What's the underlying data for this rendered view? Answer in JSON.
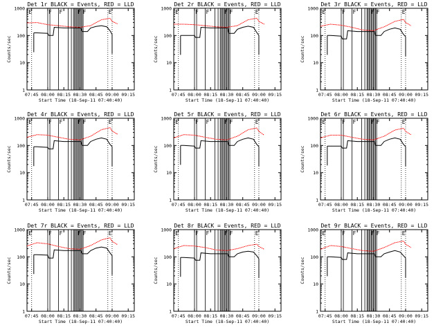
{
  "figure_title": "",
  "chart_data": [
    {
      "type": "line",
      "title": "Det 1r BLACK = Events, RED = LLD",
      "xlabel": "Start Time (18-Sep-11 07:40:40)",
      "ylabel": "Counts/sec",
      "x_tick_labels": [
        "07:45",
        "08:00",
        "08:15",
        "08:30",
        "08:45",
        "09:00",
        "09:15"
      ],
      "y_tick_labels": [
        "1",
        "10",
        "100",
        "1000"
      ],
      "y_scale": "log",
      "ylim": [
        1,
        1000
      ],
      "xlim": [
        "07:40:40",
        "09:20:40"
      ],
      "flags": [
        "E",
        "F",
        "F",
        "F",
        "F",
        "E"
      ],
      "series": [
        {
          "color": "#ff0000",
          "x": [
            "07:40:40",
            "07:50",
            "08:00",
            "08:10",
            "08:20",
            "08:30",
            "08:40",
            "08:50",
            "08:58",
            "09:00",
            "09:05"
          ],
          "y": [
            290,
            300,
            250,
            230,
            210,
            200,
            230,
            380,
            430,
            330,
            270
          ]
        },
        {
          "color": "#000000",
          "x": [
            "07:47",
            "07:50",
            "08:00",
            "08:01",
            "08:05",
            "08:06",
            "08:15",
            "08:25",
            "08:31",
            "08:32",
            "08:37",
            "08:40",
            "08:45",
            "08:50",
            "08:55",
            "08:58",
            "09:00"
          ],
          "y": [
            125,
            125,
            120,
            100,
            100,
            200,
            190,
            190,
            190,
            140,
            140,
            190,
            215,
            230,
            210,
            150,
            110
          ]
        }
      ]
    },
    {
      "type": "line",
      "title": "Det 2r BLACK = Events, RED = LLD",
      "xlabel": "Start Time (18-Sep-11 07:40:40)",
      "ylabel": "Counts/sec",
      "x_tick_labels": [
        "07:45",
        "08:00",
        "08:15",
        "08:30",
        "08:45",
        "09:00",
        "09:15"
      ],
      "y_tick_labels": [
        "1",
        "10",
        "100",
        "1000"
      ],
      "y_scale": "log",
      "ylim": [
        1,
        1000
      ],
      "xlim": [
        "07:40:40",
        "09:20:40"
      ],
      "flags": [
        "E",
        "F",
        "F",
        "F",
        "F",
        "E"
      ],
      "series": [
        {
          "color": "#ff0000",
          "x": [
            "07:40:40",
            "07:50",
            "08:00",
            "08:10",
            "08:20",
            "08:30",
            "08:40",
            "08:50",
            "08:58",
            "09:00",
            "09:05"
          ],
          "y": [
            260,
            260,
            250,
            230,
            210,
            200,
            230,
            380,
            430,
            330,
            260
          ]
        },
        {
          "color": "#000000",
          "x": [
            "07:47",
            "07:50",
            "08:00",
            "08:01",
            "08:05",
            "08:06",
            "08:15",
            "08:25",
            "08:31",
            "08:32",
            "08:37",
            "08:40",
            "08:45",
            "08:50",
            "08:55",
            "08:58",
            "09:00"
          ],
          "y": [
            100,
            100,
            100,
            85,
            85,
            200,
            190,
            190,
            190,
            120,
            120,
            170,
            200,
            220,
            200,
            130,
            100
          ]
        }
      ]
    },
    {
      "type": "line",
      "title": "Det 3r BLACK = Events, RED = LLD",
      "xlabel": "Start Time (18-Sep-11 07:40:40)",
      "ylabel": "Counts/sec",
      "x_tick_labels": [
        "07:45",
        "08:00",
        "08:15",
        "08:30",
        "08:45",
        "09:00",
        "09:15"
      ],
      "y_tick_labels": [
        "1",
        "10",
        "100",
        "1000"
      ],
      "y_scale": "log",
      "ylim": [
        1,
        1000
      ],
      "xlim": [
        "07:40:40",
        "09:20:40"
      ],
      "flags": [
        "E",
        "F",
        "F",
        "F",
        "F",
        "E"
      ],
      "series": [
        {
          "color": "#ff0000",
          "x": [
            "07:40:40",
            "07:50",
            "08:00",
            "08:10",
            "08:20",
            "08:30",
            "08:40",
            "08:50",
            "08:58",
            "09:00",
            "09:05"
          ],
          "y": [
            220,
            260,
            240,
            200,
            160,
            150,
            210,
            330,
            390,
            300,
            230
          ]
        },
        {
          "color": "#000000",
          "x": [
            "07:47",
            "07:50",
            "08:00",
            "08:01",
            "08:05",
            "08:06",
            "08:15",
            "08:25",
            "08:31",
            "08:32",
            "08:37",
            "08:40",
            "08:45",
            "08:50",
            "08:55",
            "08:58",
            "09:00"
          ],
          "y": [
            100,
            100,
            95,
            75,
            75,
            150,
            140,
            140,
            140,
            100,
            100,
            140,
            170,
            190,
            170,
            110,
            90
          ]
        }
      ]
    },
    {
      "type": "line",
      "title": "Det 4r BLACK = Events, RED = LLD",
      "xlabel": "Start Time (18-Sep-11 07:40:40)",
      "ylabel": "Counts/sec",
      "x_tick_labels": [
        "07:45",
        "08:00",
        "08:15",
        "08:30",
        "08:45",
        "09:00",
        "09:15"
      ],
      "y_tick_labels": [
        "1",
        "10",
        "100",
        "1000"
      ],
      "y_scale": "log",
      "ylim": [
        1,
        1000
      ],
      "xlim": [
        "07:40:40",
        "09:20:40"
      ],
      "flags": [
        "E",
        "F",
        "F",
        "F",
        "F",
        "E"
      ],
      "series": [
        {
          "color": "#ff0000",
          "x": [
            "07:40:40",
            "07:50",
            "08:00",
            "08:10",
            "08:20",
            "08:30",
            "08:40",
            "08:50",
            "08:58",
            "09:00",
            "09:05"
          ],
          "y": [
            200,
            250,
            240,
            200,
            170,
            160,
            220,
            380,
            450,
            340,
            260
          ]
        },
        {
          "color": "#000000",
          "x": [
            "07:47",
            "07:50",
            "08:00",
            "08:01",
            "08:05",
            "08:06",
            "08:15",
            "08:25",
            "08:31",
            "08:32",
            "08:37",
            "08:40",
            "08:45",
            "08:50",
            "08:55",
            "08:58",
            "09:00"
          ],
          "y": [
            90,
            90,
            85,
            75,
            75,
            150,
            140,
            140,
            140,
            100,
            100,
            140,
            170,
            190,
            170,
            110,
            90
          ]
        }
      ]
    },
    {
      "type": "line",
      "title": "Det 5r BLACK = Events, RED = LLD",
      "xlabel": "Start Time (18-Sep-11 07:40:40)",
      "ylabel": "Counts/sec",
      "x_tick_labels": [
        "07:45",
        "08:00",
        "08:15",
        "08:30",
        "08:45",
        "09:00",
        "09:15"
      ],
      "y_tick_labels": [
        "1",
        "10",
        "100",
        "1000"
      ],
      "y_scale": "log",
      "ylim": [
        1,
        1000
      ],
      "xlim": [
        "07:40:40",
        "09:20:40"
      ],
      "flags": [
        "E",
        "F",
        "F",
        "F",
        "F",
        "E"
      ],
      "series": [
        {
          "color": "#ff0000",
          "x": [
            "07:40:40",
            "07:50",
            "08:00",
            "08:10",
            "08:20",
            "08:30",
            "08:40",
            "08:50",
            "08:58",
            "09:00",
            "09:05"
          ],
          "y": [
            190,
            250,
            240,
            200,
            170,
            160,
            220,
            380,
            440,
            330,
            240
          ]
        },
        {
          "color": "#000000",
          "x": [
            "07:47",
            "07:50",
            "08:00",
            "08:01",
            "08:05",
            "08:06",
            "08:15",
            "08:25",
            "08:31",
            "08:32",
            "08:37",
            "08:40",
            "08:45",
            "08:50",
            "08:55",
            "08:58",
            "09:00"
          ],
          "y": [
            100,
            100,
            95,
            80,
            80,
            150,
            140,
            140,
            140,
            100,
            100,
            140,
            170,
            190,
            170,
            110,
            90
          ]
        }
      ]
    },
    {
      "type": "line",
      "title": "Det 6r BLACK = Events, RED = LLD",
      "xlabel": "Start Time (18-Sep-11 07:40:40)",
      "ylabel": "Counts/sec",
      "x_tick_labels": [
        "07:45",
        "08:00",
        "08:15",
        "08:30",
        "08:45",
        "09:00",
        "09:15"
      ],
      "y_tick_labels": [
        "1",
        "10",
        "100",
        "1000"
      ],
      "y_scale": "log",
      "ylim": [
        1,
        1000
      ],
      "xlim": [
        "07:40:40",
        "09:20:40"
      ],
      "flags": [
        "E",
        "F",
        "F",
        "F",
        "F",
        "E"
      ],
      "series": [
        {
          "color": "#ff0000",
          "x": [
            "07:40:40",
            "07:50",
            "08:00",
            "08:10",
            "08:20",
            "08:30",
            "08:40",
            "08:50",
            "08:58",
            "09:00",
            "09:05"
          ],
          "y": [
            190,
            240,
            240,
            200,
            170,
            160,
            220,
            370,
            430,
            330,
            250
          ]
        },
        {
          "color": "#000000",
          "x": [
            "07:47",
            "07:50",
            "08:00",
            "08:01",
            "08:05",
            "08:06",
            "08:15",
            "08:25",
            "08:31",
            "08:32",
            "08:37",
            "08:40",
            "08:45",
            "08:50",
            "08:55",
            "08:58",
            "09:00"
          ],
          "y": [
            95,
            95,
            95,
            80,
            80,
            150,
            140,
            140,
            140,
            100,
            100,
            140,
            170,
            190,
            170,
            110,
            90
          ]
        }
      ]
    },
    {
      "type": "line",
      "title": "Det 7r BLACK = Events, RED = LLD",
      "xlabel": "Start Time (18-Sep-11 07:40:40)",
      "ylabel": "Counts/sec",
      "x_tick_labels": [
        "07:45",
        "08:00",
        "08:15",
        "08:30",
        "08:45",
        "09:00",
        "09:15"
      ],
      "y_tick_labels": [
        "1",
        "10",
        "100",
        "1000"
      ],
      "y_scale": "log",
      "ylim": [
        1,
        1000
      ],
      "xlim": [
        "07:40:40",
        "09:20:40"
      ],
      "flags": [
        "E",
        "F",
        "F",
        "F",
        "F",
        "E"
      ],
      "series": [
        {
          "color": "#ff0000",
          "x": [
            "07:40:40",
            "07:50",
            "08:00",
            "08:10",
            "08:20",
            "08:30",
            "08:40",
            "08:50",
            "08:58",
            "09:00",
            "09:05"
          ],
          "y": [
            250,
            330,
            300,
            240,
            200,
            190,
            260,
            420,
            500,
            370,
            280
          ]
        },
        {
          "color": "#000000",
          "x": [
            "07:47",
            "07:50",
            "08:00",
            "08:01",
            "08:05",
            "08:06",
            "08:15",
            "08:25",
            "08:31",
            "08:32",
            "08:37",
            "08:40",
            "08:45",
            "08:50",
            "08:55",
            "08:58",
            "09:00"
          ],
          "y": [
            120,
            120,
            115,
            90,
            90,
            180,
            170,
            170,
            170,
            130,
            130,
            170,
            210,
            230,
            210,
            140,
            110
          ]
        }
      ]
    },
    {
      "type": "line",
      "title": "Det 8r BLACK = Events, RED = LLD",
      "xlabel": "Start Time (18-Sep-11 07:40:40)",
      "ylabel": "Counts/sec",
      "x_tick_labels": [
        "07:45",
        "08:00",
        "08:15",
        "08:30",
        "08:45",
        "09:00",
        "09:15"
      ],
      "y_tick_labels": [
        "1",
        "10",
        "100",
        "1000"
      ],
      "y_scale": "log",
      "ylim": [
        1,
        1000
      ],
      "xlim": [
        "07:40:40",
        "09:20:40"
      ],
      "flags": [
        "E",
        "F",
        "F",
        "F",
        "F",
        "E"
      ],
      "series": [
        {
          "color": "#ff0000",
          "x": [
            "07:40:40",
            "07:50",
            "08:00",
            "08:10",
            "08:20",
            "08:30",
            "08:40",
            "08:50",
            "08:58",
            "09:00",
            "09:05"
          ],
          "y": [
            200,
            260,
            250,
            220,
            180,
            170,
            200,
            260,
            290,
            240,
            190
          ]
        },
        {
          "color": "#000000",
          "x": [
            "07:47",
            "07:50",
            "08:00",
            "08:01",
            "08:05",
            "08:06",
            "08:15",
            "08:25",
            "08:31",
            "08:32",
            "08:37",
            "08:40",
            "08:45",
            "08:50",
            "08:55",
            "08:58",
            "09:00"
          ],
          "y": [
            95,
            95,
            90,
            75,
            75,
            140,
            130,
            130,
            130,
            100,
            100,
            130,
            150,
            160,
            150,
            110,
            85
          ]
        }
      ]
    },
    {
      "type": "line",
      "title": "Det 9r BLACK = Events, RED = LLD",
      "xlabel": "Start Time (18-Sep-11 07:40:40)",
      "ylabel": "Counts/sec",
      "x_tick_labels": [
        "07:45",
        "08:00",
        "08:15",
        "08:30",
        "08:45",
        "09:00",
        "09:15"
      ],
      "y_tick_labels": [
        "1",
        "10",
        "100",
        "1000"
      ],
      "y_scale": "log",
      "ylim": [
        1,
        1000
      ],
      "xlim": [
        "07:40:40",
        "09:20:40"
      ],
      "flags": [
        "E",
        "F",
        "F",
        "F",
        "F",
        "E"
      ],
      "series": [
        {
          "color": "#ff0000",
          "x": [
            "07:40:40",
            "07:50",
            "08:00",
            "08:10",
            "08:20",
            "08:30",
            "08:40",
            "08:50",
            "08:58",
            "09:00",
            "09:05"
          ],
          "y": [
            190,
            260,
            240,
            200,
            170,
            160,
            220,
            330,
            380,
            290,
            220
          ]
        },
        {
          "color": "#000000",
          "x": [
            "07:47",
            "07:50",
            "08:00",
            "08:01",
            "08:05",
            "08:06",
            "08:15",
            "08:25",
            "08:31",
            "08:32",
            "08:37",
            "08:40",
            "08:45",
            "08:50",
            "08:55",
            "08:58",
            "09:00"
          ],
          "y": [
            100,
            100,
            95,
            80,
            80,
            140,
            130,
            130,
            130,
            100,
            100,
            130,
            150,
            170,
            150,
            110,
            90
          ]
        }
      ]
    }
  ]
}
